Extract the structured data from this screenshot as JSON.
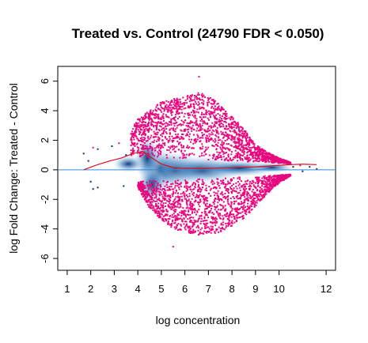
{
  "chart_data": {
    "type": "scatter",
    "title": "Treated vs. Control (24790 FDR < 0.050)",
    "xlabel": "log concentration",
    "ylabel": "log Fold Change: Treated - Control",
    "xlim": [
      0.6,
      12.4
    ],
    "ylim": [
      -6.8,
      7.0
    ],
    "x_ticks": [
      1,
      2,
      3,
      4,
      5,
      6,
      7,
      8,
      9,
      10,
      12
    ],
    "y_ticks": [
      -6,
      -4,
      -2,
      0,
      2,
      4,
      6
    ],
    "grid": false,
    "legend": "none",
    "colors": {
      "significant": "#e8087e",
      "density_dark": "#08306b",
      "density_light": "#deebf7",
      "zero_line": "#2e8bd6",
      "loess_line": "#e0101c"
    },
    "zero_line_y": 0,
    "loess": {
      "name": "",
      "x": [
        1.7,
        2.2,
        2.8,
        3.3,
        3.8,
        4.2,
        4.5,
        5.0,
        5.5,
        6.0,
        7.0,
        8.0,
        9.0,
        10.0,
        10.5,
        11.0,
        11.6
      ],
      "y": [
        0.0,
        0.3,
        0.6,
        0.8,
        1.1,
        1.25,
        0.9,
        0.4,
        0.15,
        0.1,
        0.1,
        0.15,
        0.2,
        0.3,
        0.35,
        0.38,
        0.35
      ]
    },
    "significant_envelope": {
      "upper": {
        "x": [
          3.7,
          4.2,
          5.0,
          5.5,
          6.0,
          6.5,
          7.0,
          7.5,
          8.0,
          8.5,
          9.0,
          9.5,
          10.0,
          10.5
        ],
        "y": [
          3.0,
          3.7,
          4.6,
          4.8,
          5.0,
          5.3,
          5.0,
          4.4,
          3.6,
          2.8,
          1.7,
          1.2,
          0.8,
          0.5
        ]
      },
      "lower": {
        "x": [
          4.0,
          4.5,
          5.0,
          5.5,
          6.0,
          6.5,
          7.0,
          7.5,
          8.0,
          8.5,
          9.0,
          9.5,
          10.0,
          10.5
        ],
        "y": [
          -1.2,
          -2.6,
          -3.4,
          -4.0,
          -4.2,
          -4.4,
          -4.4,
          -4.2,
          -3.8,
          -3.3,
          -2.5,
          -1.6,
          -0.9,
          -0.4
        ]
      }
    },
    "sparse_points": [
      {
        "x": 1.7,
        "y": 1.1,
        "sig": false
      },
      {
        "x": 1.9,
        "y": 0.6,
        "sig": false
      },
      {
        "x": 2.1,
        "y": 1.5,
        "sig": true
      },
      {
        "x": 2.3,
        "y": 1.4,
        "sig": false
      },
      {
        "x": 2.0,
        "y": -0.8,
        "sig": false
      },
      {
        "x": 2.1,
        "y": -1.3,
        "sig": false
      },
      {
        "x": 2.3,
        "y": -1.2,
        "sig": false
      },
      {
        "x": 2.9,
        "y": 1.6,
        "sig": false
      },
      {
        "x": 3.2,
        "y": 1.8,
        "sig": true
      },
      {
        "x": 3.4,
        "y": -1.1,
        "sig": false
      },
      {
        "x": 3.5,
        "y": 1.0,
        "sig": false
      },
      {
        "x": 6.6,
        "y": 6.3,
        "sig": true
      },
      {
        "x": 5.5,
        "y": -5.2,
        "sig": true
      },
      {
        "x": 10.6,
        "y": 0.2,
        "sig": false
      },
      {
        "x": 11.0,
        "y": -0.1,
        "sig": false
      },
      {
        "x": 11.3,
        "y": 0.2,
        "sig": false
      },
      {
        "x": 11.6,
        "y": 0.05,
        "sig": false
      },
      {
        "x": 10.9,
        "y": 0.3,
        "sig": true
      }
    ]
  }
}
